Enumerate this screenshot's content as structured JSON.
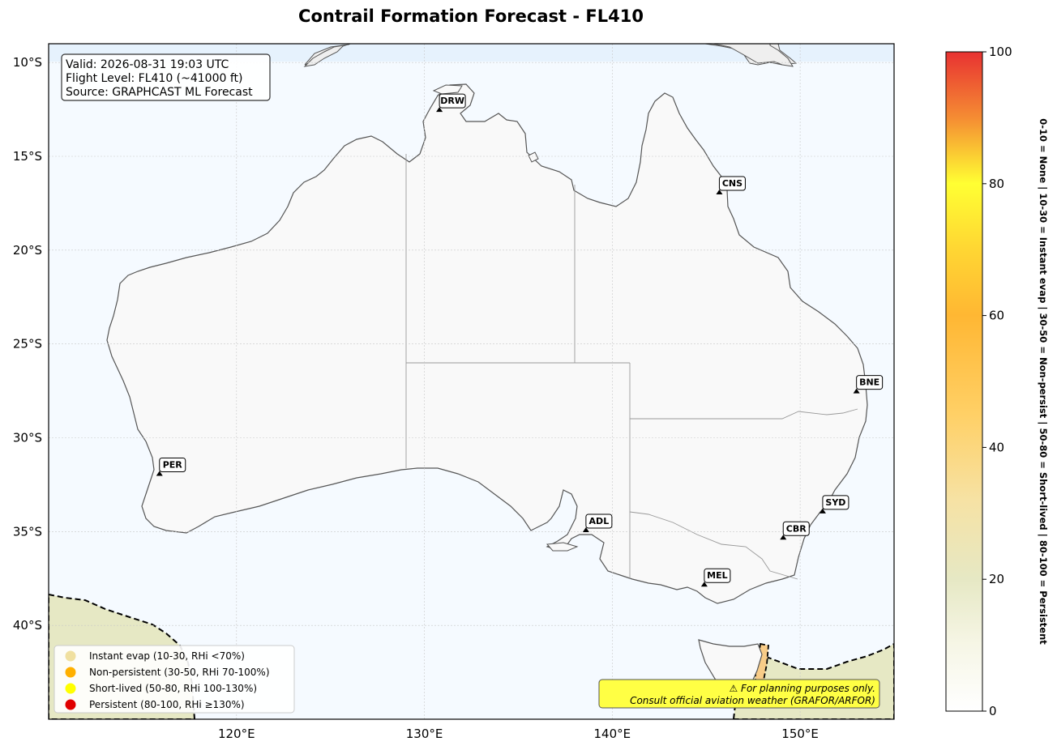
{
  "title": "Contrail Formation Forecast - FL410",
  "info_box": {
    "valid": "Valid: 2026-08-31 19:03 UTC",
    "flight_level": "Flight Level: FL410 (~41000 ft)",
    "source": "Source: GRAPHCAST ML Forecast"
  },
  "map_extent": {
    "lon": [
      110,
      155
    ],
    "lat": [
      -45,
      -9
    ]
  },
  "lat_ticks": [
    {
      "value": -10,
      "label": "10°S"
    },
    {
      "value": -15,
      "label": "15°S"
    },
    {
      "value": -20,
      "label": "20°S"
    },
    {
      "value": -25,
      "label": "25°S"
    },
    {
      "value": -30,
      "label": "30°S"
    },
    {
      "value": -35,
      "label": "35°S"
    },
    {
      "value": -40,
      "label": "40°S"
    }
  ],
  "lon_ticks": [
    {
      "value": 120,
      "label": "120°E"
    },
    {
      "value": 130,
      "label": "130°E"
    },
    {
      "value": 140,
      "label": "140°E"
    },
    {
      "value": 150,
      "label": "150°E"
    }
  ],
  "cities": [
    {
      "code": "DRW",
      "lon": 130.8,
      "lat": -12.5
    },
    {
      "code": "CNS",
      "lon": 145.7,
      "lat": -16.9
    },
    {
      "code": "BNE",
      "lon": 153.0,
      "lat": -27.5
    },
    {
      "code": "PER",
      "lon": 115.9,
      "lat": -31.9
    },
    {
      "code": "ADL",
      "lon": 138.6,
      "lat": -34.9
    },
    {
      "code": "SYD",
      "lon": 151.2,
      "lat": -33.9
    },
    {
      "code": "CBR",
      "lon": 149.1,
      "lat": -35.3
    },
    {
      "code": "MEL",
      "lon": 144.9,
      "lat": -37.8
    }
  ],
  "legend": [
    {
      "label": "Instant evap (10-30, RHi <70%)",
      "color": "#f0e0a0"
    },
    {
      "label": "Non-persistent (30-50, RHi 70-100%)",
      "color": "#ffb000"
    },
    {
      "label": "Short-lived (50-80, RHi 100-130%)",
      "color": "#ffff00"
    },
    {
      "label": "Persistent (80-100, RHi ≥130%)",
      "color": "#e00000"
    }
  ],
  "disclaimer": {
    "line1": "⚠ For planning purposes only.",
    "line2": "Consult official aviation weather (GRAFOR/ARFOR)"
  },
  "colorbar": {
    "min": 0,
    "max": 100,
    "ticks": [
      {
        "value": 0,
        "label": "0"
      },
      {
        "value": 20,
        "label": "20"
      },
      {
        "value": 40,
        "label": "40"
      },
      {
        "value": 60,
        "label": "60"
      },
      {
        "value": 80,
        "label": "80"
      },
      {
        "value": 100,
        "label": "100"
      }
    ],
    "side_label": "0-10 = None  |  10-30 = Instant evap  |  30-50 = Non-persist  |  50-80 = Short-lived  |  80-100 = Persistent"
  },
  "colors": {
    "ocean": "#f5faff",
    "land": "#f9f9f9",
    "coast": "#555555",
    "low_zone": "#e6e8c4",
    "tas_zone": "#f8cc88",
    "disclaimer_bg": "#ffff44"
  }
}
